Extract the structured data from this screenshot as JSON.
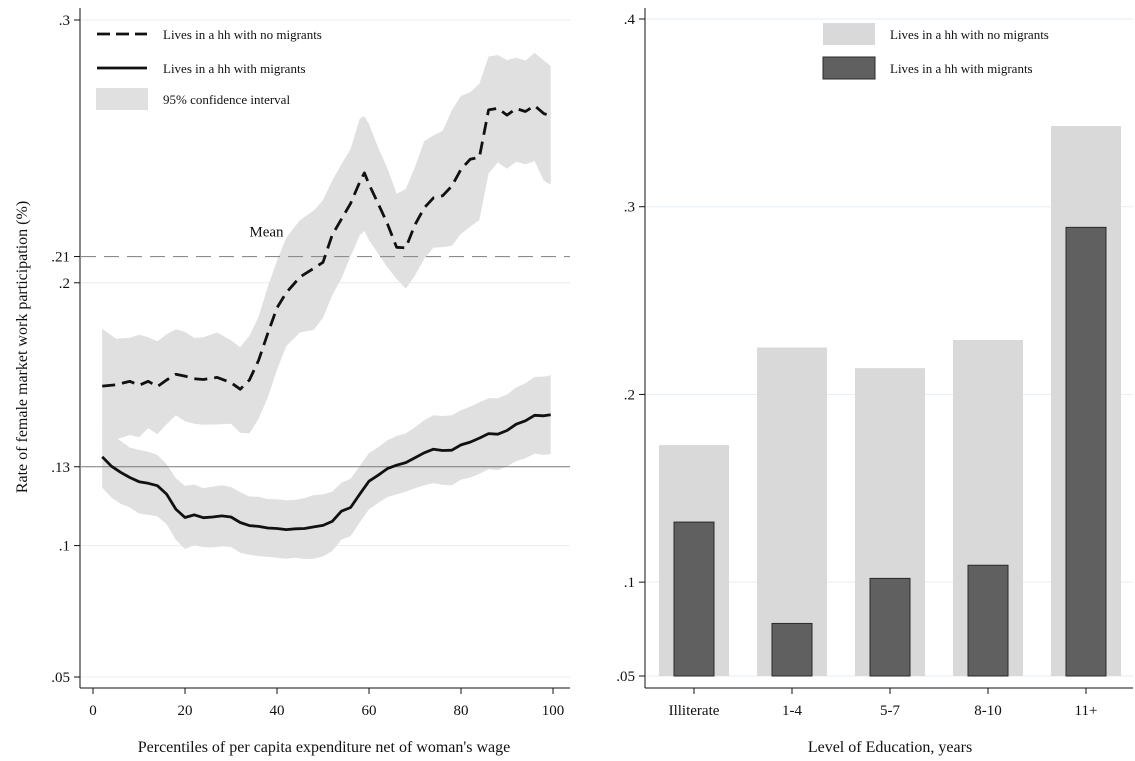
{
  "chart_data": [
    {
      "type": "line",
      "xlabel": "Percentiles of per capita expenditure net of woman's wage",
      "ylabel": "Rate of female market work participation (%)",
      "xlim": [
        0,
        100
      ],
      "ylim": [
        0.05,
        0.3
      ],
      "x_ticks": [
        0,
        20,
        40,
        60,
        80,
        100
      ],
      "y_ticks": [
        {
          "value": 0.05,
          "label": ".05"
        },
        {
          "value": 0.1,
          "label": ".1"
        },
        {
          "value": 0.13,
          "label": ".13"
        },
        {
          "value": 0.2,
          "label": ".2"
        },
        {
          "value": 0.21,
          "label": ".21"
        },
        {
          "value": 0.3,
          "label": ".3"
        }
      ],
      "legend": {
        "position": "top-left",
        "entries": [
          {
            "label": "Lives in a hh with no migrants",
            "style": "dashed"
          },
          {
            "label": "Lives in a hh with migrants",
            "style": "solid"
          },
          {
            "label": "95% confidence interval",
            "style": "band"
          }
        ]
      },
      "reference_lines": [
        {
          "value": 0.21,
          "style": "dashed",
          "annotation": "Mean",
          "annotation_x": 34
        },
        {
          "value": 0.13,
          "style": "solid",
          "annotation": ""
        }
      ],
      "series": [
        {
          "name": "Lives in a hh with no migrants",
          "style": "dashed",
          "x": [
            2,
            5,
            8,
            10,
            12,
            14,
            16,
            18,
            20,
            22,
            24,
            27,
            30,
            32,
            34,
            36,
            38,
            40,
            42,
            45,
            48,
            50,
            52,
            54,
            56,
            58,
            59,
            60,
            62,
            64,
            66,
            68,
            70,
            72,
            74,
            76,
            78,
            80,
            82,
            84,
            86,
            88,
            90,
            92,
            94,
            96,
            98,
            99.5
          ],
          "y": [
            0.1607,
            0.1612,
            0.1625,
            0.161,
            0.1625,
            0.1605,
            0.163,
            0.1652,
            0.1645,
            0.1635,
            0.1632,
            0.164,
            0.162,
            0.1595,
            0.163,
            0.1705,
            0.1808,
            0.1905,
            0.1962,
            0.2022,
            0.2055,
            0.2078,
            0.2182,
            0.2242,
            0.2302,
            0.2384,
            0.2418,
            0.2375,
            0.2301,
            0.2225,
            0.2135,
            0.2133,
            0.2221,
            0.2285,
            0.2323,
            0.2331,
            0.2368,
            0.2432,
            0.247,
            0.2478,
            0.2658,
            0.2664,
            0.2638,
            0.2663,
            0.2652,
            0.2674,
            0.2644,
            0.2635
          ],
          "ci_upper": [
            0.1825,
            0.1787,
            0.1791,
            0.1802,
            0.1793,
            0.1777,
            0.1804,
            0.1823,
            0.1813,
            0.179,
            0.1793,
            0.1811,
            0.1781,
            0.1755,
            0.1798,
            0.1871,
            0.1985,
            0.2084,
            0.2171,
            0.2239,
            0.2275,
            0.2314,
            0.2389,
            0.2451,
            0.2509,
            0.2625,
            0.2634,
            0.2604,
            0.2514,
            0.2436,
            0.2339,
            0.2357,
            0.2441,
            0.2539,
            0.2561,
            0.2578,
            0.2656,
            0.2711,
            0.2725,
            0.2758,
            0.2861,
            0.2867,
            0.2847,
            0.2857,
            0.2846,
            0.2875,
            0.2846,
            0.2825
          ],
          "ci_lower": [
            0.1368,
            0.1404,
            0.1421,
            0.1412,
            0.1447,
            0.1424,
            0.1462,
            0.1496,
            0.1473,
            0.1464,
            0.146,
            0.1461,
            0.1464,
            0.1429,
            0.1427,
            0.1482,
            0.1564,
            0.1669,
            0.1759,
            0.1811,
            0.1821,
            0.1867,
            0.1952,
            0.2016,
            0.2101,
            0.2181,
            0.2197,
            0.2162,
            0.2111,
            0.2059,
            0.2015,
            0.1977,
            0.2028,
            0.2091,
            0.2134,
            0.2136,
            0.2141,
            0.2186,
            0.2213,
            0.2239,
            0.2416,
            0.2458,
            0.2434,
            0.2461,
            0.2451,
            0.2463,
            0.2389,
            0.2373
          ]
        },
        {
          "name": "Lives in a hh with migrants",
          "style": "solid",
          "x": [
            2,
            4,
            6,
            8,
            10,
            12,
            14,
            16,
            18,
            20,
            22,
            24,
            26,
            28,
            30,
            32,
            34,
            36,
            38,
            40,
            42,
            44,
            46,
            48,
            50,
            52,
            54,
            56,
            58,
            60,
            62,
            64,
            66,
            68,
            70,
            72,
            74,
            76,
            78,
            80,
            82,
            84,
            86,
            88,
            90,
            92,
            94,
            96,
            98,
            99.5
          ],
          "y": [
            0.1338,
            0.1302,
            0.1279,
            0.1259,
            0.1243,
            0.1237,
            0.1228,
            0.1196,
            0.1139,
            0.1107,
            0.1117,
            0.1106,
            0.1109,
            0.1113,
            0.1109,
            0.1088,
            0.1076,
            0.1073,
            0.1067,
            0.1065,
            0.1061,
            0.1064,
            0.1065,
            0.1071,
            0.1077,
            0.1092,
            0.1131,
            0.1145,
            0.1196,
            0.1245,
            0.1268,
            0.1293,
            0.1306,
            0.1316,
            0.1334,
            0.1353,
            0.1367,
            0.1362,
            0.1363,
            0.1383,
            0.1394,
            0.1409,
            0.1426,
            0.1424,
            0.1438,
            0.1462,
            0.1475,
            0.1496,
            0.1494,
            0.1498
          ],
          "ci_upper": [
            0.1456,
            0.1421,
            0.1399,
            0.1373,
            0.1364,
            0.1357,
            0.1345,
            0.131,
            0.1256,
            0.1227,
            0.1232,
            0.1218,
            0.1225,
            0.1229,
            0.1223,
            0.1203,
            0.1187,
            0.1186,
            0.1177,
            0.1176,
            0.1172,
            0.1174,
            0.1181,
            0.1192,
            0.1195,
            0.1205,
            0.1239,
            0.1254,
            0.1303,
            0.1352,
            0.1374,
            0.1401,
            0.1417,
            0.1427,
            0.145,
            0.1477,
            0.1496,
            0.1493,
            0.1496,
            0.1515,
            0.1529,
            0.1545,
            0.1561,
            0.1561,
            0.1575,
            0.1602,
            0.1618,
            0.1642,
            0.1643,
            0.1648
          ],
          "ci_lower": [
            0.122,
            0.1183,
            0.1159,
            0.1145,
            0.1122,
            0.1117,
            0.1111,
            0.1082,
            0.1022,
            0.0987,
            0.1002,
            0.0994,
            0.0993,
            0.0997,
            0.0995,
            0.0973,
            0.0965,
            0.096,
            0.0957,
            0.0954,
            0.095,
            0.0954,
            0.0949,
            0.095,
            0.0959,
            0.0979,
            0.1023,
            0.1036,
            0.1089,
            0.1138,
            0.1162,
            0.1185,
            0.1195,
            0.1205,
            0.1218,
            0.1229,
            0.1238,
            0.1231,
            0.123,
            0.1251,
            0.1259,
            0.1273,
            0.1291,
            0.1287,
            0.1301,
            0.1322,
            0.1332,
            0.135,
            0.1345,
            0.1348
          ]
        }
      ]
    },
    {
      "type": "bar",
      "xlabel": "Level of Education, years",
      "ylabel": "",
      "ylim": [
        0.05,
        0.4
      ],
      "y_ticks": [
        {
          "value": 0.05,
          "label": ".05"
        },
        {
          "value": 0.1,
          "label": ".1"
        },
        {
          "value": 0.2,
          "label": ".2"
        },
        {
          "value": 0.3,
          "label": ".3"
        },
        {
          "value": 0.4,
          "label": ".4"
        }
      ],
      "categories": [
        "Illiterate",
        "1-4",
        "5-7",
        "8-10",
        "11+"
      ],
      "legend": {
        "position": "top-right",
        "entries": [
          {
            "label": "Lives in a hh with no migrants",
            "color": "#d9d9d9"
          },
          {
            "label": "Lives in a hh with migrants",
            "color": "#606060"
          }
        ]
      },
      "series": [
        {
          "name": "Lives in a hh with no migrants",
          "color": "#d9d9d9",
          "values": [
            0.173,
            0.225,
            0.214,
            0.229,
            0.343
          ]
        },
        {
          "name": "Lives in a hh with migrants",
          "color": "#606060",
          "values": [
            0.132,
            0.078,
            0.102,
            0.109,
            0.289
          ]
        }
      ]
    }
  ]
}
